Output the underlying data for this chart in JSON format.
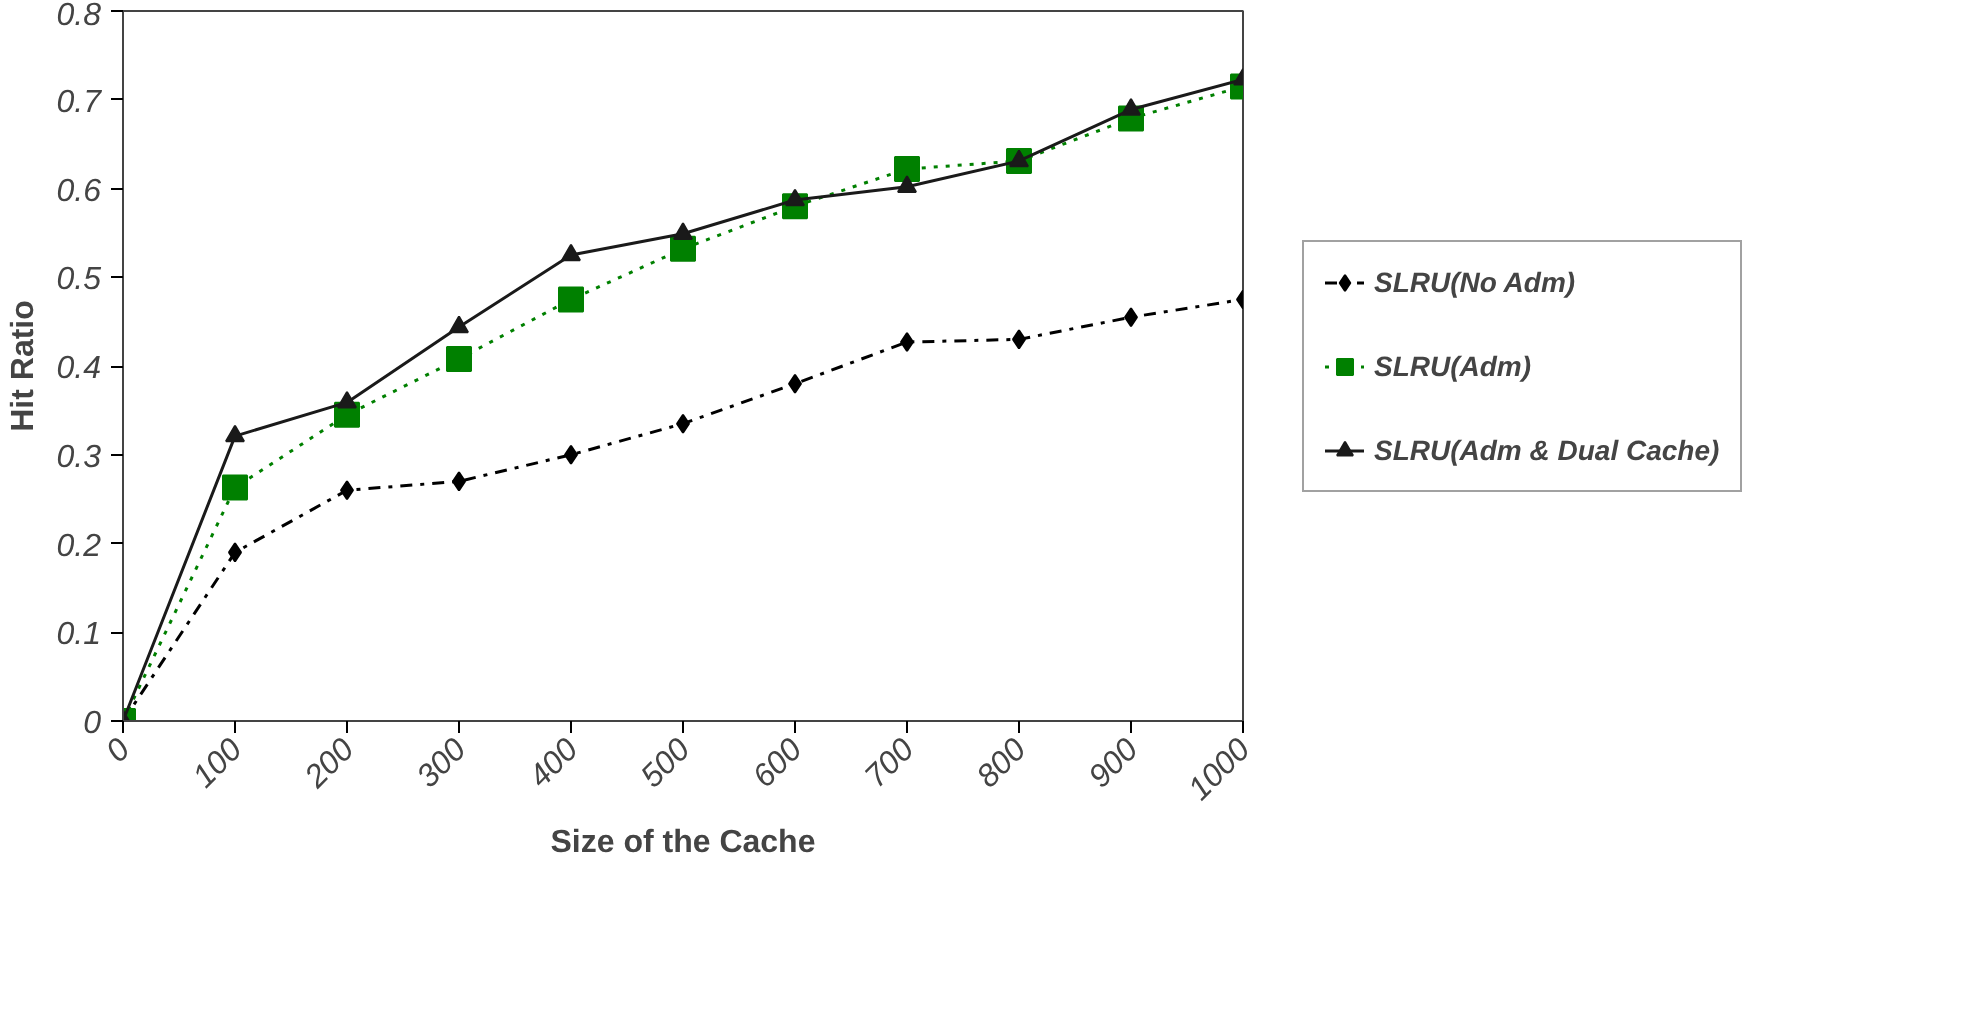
{
  "chart_data": {
    "type": "line",
    "xlabel": "Size of the Cache",
    "ylabel": "Hit Ratio",
    "categories": [
      "0",
      "100",
      "200",
      "300",
      "400",
      "500",
      "600",
      "700",
      "800",
      "900",
      "1000"
    ],
    "ylim": [
      0,
      0.8
    ],
    "yticks": [
      0,
      0.1,
      0.2,
      0.3,
      0.4,
      0.5,
      0.6,
      0.7,
      0.8
    ],
    "grid": false,
    "legend": "right",
    "series": [
      {
        "name": "SLRU(No Adm)",
        "color": "#000000",
        "marker": "diamond",
        "line_style": "dashdot",
        "values": [
          0,
          0.19,
          0.26,
          0.27,
          0.3,
          0.335,
          0.38,
          0.427,
          0.43,
          0.455,
          0.475
        ]
      },
      {
        "name": "SLRU(Adm)",
        "color": "#008000",
        "marker": "square",
        "line_style": "dotted",
        "values": [
          0,
          0.263,
          0.345,
          0.408,
          0.475,
          0.532,
          0.58,
          0.622,
          0.631,
          0.679,
          0.715
        ]
      },
      {
        "name": "SLRU(Adm & Dual Cache)",
        "color": "#1a1a1a",
        "marker": "triangle",
        "line_style": "solid",
        "values": [
          0,
          0.321,
          0.359,
          0.444,
          0.525,
          0.549,
          0.587,
          0.602,
          0.631,
          0.689,
          0.723
        ]
      }
    ]
  }
}
